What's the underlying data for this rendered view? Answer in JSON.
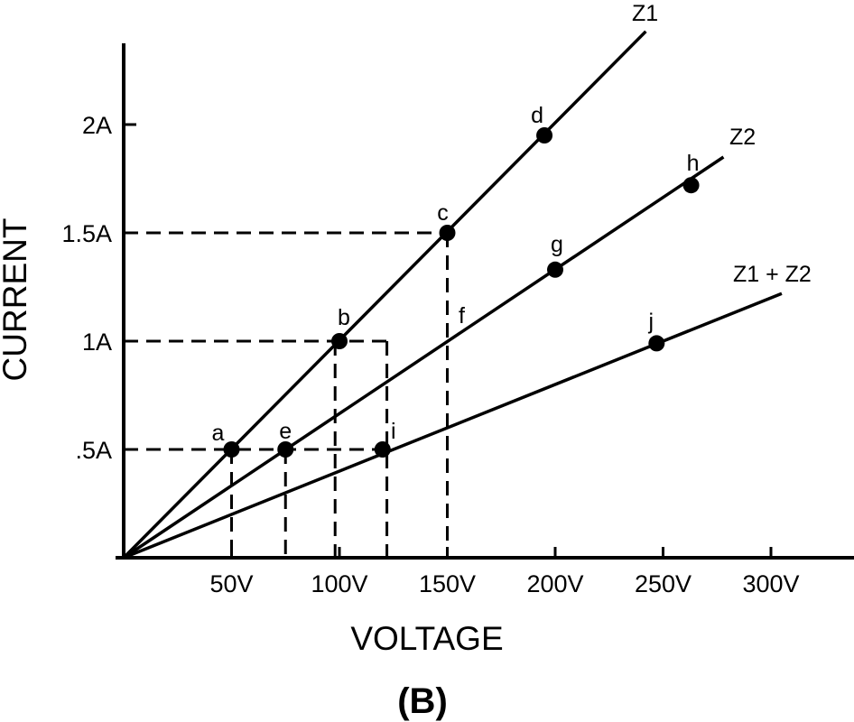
{
  "chart_data": {
    "type": "line",
    "figure_label": "(B)",
    "xlabel": "VOLTAGE",
    "ylabel": "CURRENT",
    "xlim": [
      0,
      300
    ],
    "ylim": [
      0,
      2.3
    ],
    "x_ticks": [
      {
        "value": 50,
        "label": "50V"
      },
      {
        "value": 100,
        "label": "100V"
      },
      {
        "value": 150,
        "label": "150V"
      },
      {
        "value": 200,
        "label": "200V"
      },
      {
        "value": 250,
        "label": "250V"
      },
      {
        "value": 300,
        "label": "300V"
      }
    ],
    "y_ticks": [
      {
        "value": 0.5,
        "label": ".5A"
      },
      {
        "value": 1,
        "label": "1A"
      },
      {
        "value": 1.5,
        "label": "1.5A"
      },
      {
        "value": 2,
        "label": "2A"
      }
    ],
    "series": [
      {
        "name": "Z1",
        "x": [
          0,
          242
        ],
        "y": [
          0,
          2.43
        ],
        "points": [
          {
            "label": "a",
            "x": 50,
            "y": 0.5
          },
          {
            "label": "b",
            "x": 100,
            "y": 1.0
          },
          {
            "label": "c",
            "x": 150,
            "y": 1.5
          },
          {
            "label": "d",
            "x": 195,
            "y": 1.95
          }
        ]
      },
      {
        "name": "Z2",
        "x": [
          0,
          278
        ],
        "y": [
          0,
          1.85
        ],
        "points": [
          {
            "label": "e",
            "x": 75,
            "y": 0.5
          },
          {
            "label": "g",
            "x": 200,
            "y": 1.33
          },
          {
            "label": "h",
            "x": 263,
            "y": 1.72
          }
        ]
      },
      {
        "name": "Z1 + Z2",
        "x": [
          0,
          305
        ],
        "y": [
          0,
          1.22
        ],
        "points": [
          {
            "label": "i",
            "x": 120,
            "y": 0.5
          },
          {
            "label": "j",
            "x": 247,
            "y": 0.99
          }
        ]
      }
    ],
    "annotations": [
      {
        "label": "f",
        "x": 150,
        "y": 1.0
      }
    ],
    "guides": {
      "horizontal": [
        {
          "y": 1.5,
          "x_to": 150
        },
        {
          "y": 1.0,
          "x_to": 122
        },
        {
          "y": 0.5,
          "x_to": 120
        }
      ],
      "vertical": [
        {
          "x": 50,
          "y_from": 0.5
        },
        {
          "x": 75,
          "y_from": 0.5
        },
        {
          "x": 98,
          "y_from": 1.0
        },
        {
          "x": 122,
          "y_from": 1.0
        },
        {
          "x": 150,
          "y_from": 1.5
        }
      ]
    }
  }
}
